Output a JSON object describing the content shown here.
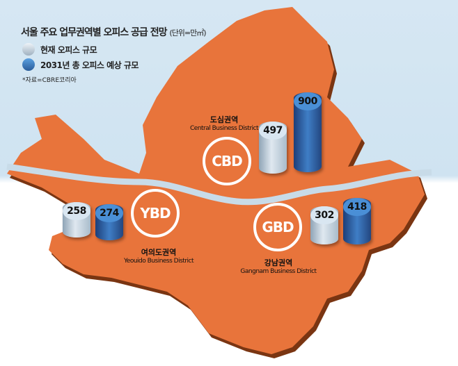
{
  "title": "서울 주요 업무권역별 오피스 공급 전망",
  "unit": "(단위=만㎡)",
  "source": "*자료=CBRE코리아",
  "colors": {
    "map": "#e8743b",
    "current": "#c9d7e4",
    "future": "#3f7ec6",
    "river": "#c8dbe8"
  },
  "chart_data": {
    "type": "bar",
    "title": "서울 주요 업무권역별 오피스 공급 전망",
    "unit": "만㎡",
    "categories": [
      "CBD",
      "YBD",
      "GBD"
    ],
    "series": [
      {
        "name": "현재 오피스 규모",
        "values": [
          497,
          258,
          302
        ]
      },
      {
        "name": "2031년 총 오피스 예상 규모",
        "values": [
          900,
          274,
          418
        ]
      }
    ],
    "legend_position": "top-left"
  },
  "districts": [
    {
      "code": "CBD",
      "ko": "도심권역",
      "en": "Central Business District",
      "current": "497",
      "future": "900"
    },
    {
      "code": "YBD",
      "ko": "여의도권역",
      "en": "Yeouido Business District",
      "current": "258",
      "future": "274"
    },
    {
      "code": "GBD",
      "ko": "강남권역",
      "en": "Gangnam Business District",
      "current": "302",
      "future": "418"
    }
  ]
}
